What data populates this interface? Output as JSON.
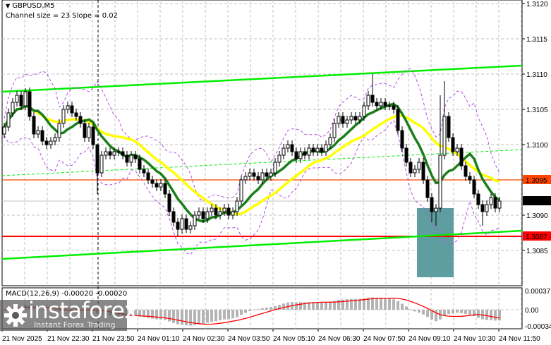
{
  "header": {
    "symbol": "GBPUSD,M5",
    "channel_info": "Channel size = 23 Slope = 0.02"
  },
  "macd": {
    "label": "MACD(12,26,9) -0.00020 -0.00020",
    "axis_ticks": [
      "0.00037",
      "0.00",
      "-0.00034"
    ],
    "histogram_color": "#b4b4b4",
    "signal_color": "#ff0000"
  },
  "watermark": {
    "brand": "instaforex",
    "tagline": "Instant Forex Trading"
  },
  "chart_data": {
    "type": "candlestick",
    "symbol": "GBPUSD",
    "timeframe": "M5",
    "ylim": [
      1.3079,
      1.312
    ],
    "y_ticks": [
      "1.3120",
      "1.3115",
      "1.3110",
      "1.3105",
      "1.3100",
      "1.3095",
      "1.3090",
      "1.3085"
    ],
    "x_ticks": [
      "21 Nov 2025",
      "21 Nov 22:30",
      "21 Nov 23:50",
      "24 Nov 01:10",
      "24 Nov 02:30",
      "24 Nov 03:50",
      "24 Nov 05:10",
      "24 Nov 06:30",
      "24 Nov 07:50",
      "24 Nov 09:10",
      "24 Nov 10:30",
      "24 Nov 11:50"
    ],
    "grid": true,
    "close": [
      1.31025,
      1.31045,
      1.3106,
      1.3107,
      1.31055,
      1.31075,
      1.3104,
      1.31015,
      1.3102,
      1.31005,
      1.31,
      1.31005,
      1.3101,
      1.3103,
      1.3105,
      1.31055,
      1.31045,
      1.3104,
      1.3103,
      1.3101,
      1.31025,
      1.31,
      1.3096,
      1.30985,
      1.3099,
      1.30985,
      1.3099,
      1.3099,
      1.30985,
      1.30975,
      1.30985,
      1.3098,
      1.30965,
      1.3096,
      1.3095,
      1.30945,
      1.3094,
      1.30945,
      1.3093,
      1.30905,
      1.3089,
      1.3088,
      1.30895,
      1.3088,
      1.30885,
      1.309,
      1.30905,
      1.30895,
      1.30905,
      1.3091,
      1.309,
      1.30905,
      1.3091,
      1.309,
      1.30905,
      1.3092,
      1.3095,
      1.30955,
      1.3096,
      1.30955,
      1.3095,
      1.3096,
      1.30955,
      1.3096,
      1.30975,
      1.30985,
      1.30995,
      1.31,
      1.3099,
      1.3098,
      1.3099,
      1.30985,
      1.30995,
      1.3099,
      1.30995,
      1.3099,
      1.31,
      1.3101,
      1.3103,
      1.3104,
      1.3103,
      1.31035,
      1.3104,
      1.31035,
      1.3104,
      1.31055,
      1.3107,
      1.3106,
      1.31055,
      1.3106,
      1.31055,
      1.31055,
      1.3105,
      1.3102,
      1.30995,
      1.30975,
      1.3096,
      1.30965,
      1.30975,
      1.3095,
      1.30925,
      1.30905,
      1.3091,
      1.30985,
      1.3104,
      1.3101,
      1.3099,
      1.30995,
      1.3097,
      1.30955,
      1.3095,
      1.3093,
      1.30915,
      1.30905,
      1.30915,
      1.30925,
      1.3091,
      1.3092
    ],
    "wick_highs": {
      "5": 1.3108,
      "22": 1.3099,
      "87": 1.311,
      "104": 1.3109,
      "103": 1.3107
    },
    "wick_lows": {
      "22": 1.3093,
      "41": 1.3087,
      "43": 1.30875,
      "101": 1.3089,
      "102": 1.30885,
      "113": 1.30885
    },
    "channel": {
      "upper": [
        1.31075,
        1.31112
      ],
      "middle": [
        1.30956,
        1.30993
      ],
      "lower": [
        1.30838,
        1.30878
      ]
    },
    "levels": [
      {
        "price": "1.3095",
        "color": "#ff4500",
        "label_text_color": "#ffffff"
      },
      {
        "price": "1.3092",
        "color": "#000000",
        "label_text_color": "#ffffff",
        "line_color": "#c0c0c0"
      },
      {
        "price": "1.3087",
        "color": "#ff0000",
        "label_text_color": "#ffffff"
      }
    ],
    "zone": {
      "price_top": 1.3091,
      "price_bottom": 1.30812,
      "color": "#5f9ea0"
    },
    "ma_fast_color": "#1a7f1a",
    "ma_slow_color": "#ffff00",
    "envelope_color": "#b050e0",
    "channel_color": "#00ee00"
  }
}
